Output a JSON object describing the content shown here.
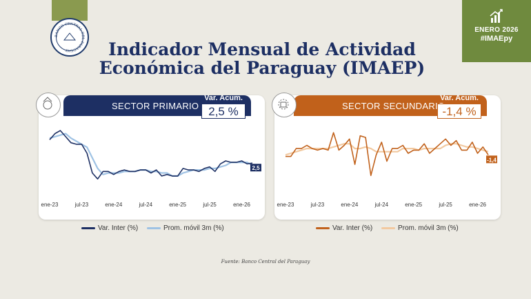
{
  "header": {
    "title_line1": "Indicador Mensual de Actividad",
    "title_line2": "Económica del Paraguay (IMAEP)",
    "badge_line1": "ENERO 2026",
    "badge_line2": "#IMAEpy",
    "seal_text": "BANCO CENTRAL DEL PARAGUAY"
  },
  "source": "Fuente: Banco Central del Paraguay",
  "colors": {
    "navy": "#1d2f63",
    "light_blue": "#9ec2e4",
    "orange": "#c1611b",
    "light_orange": "#f2c9a0",
    "green": "#6f8a3e"
  },
  "chart_data": [
    {
      "type": "line",
      "title": "SECTOR PRIMARIO",
      "acum_label": "Var. Acum.",
      "acum_value": "2,5 %",
      "end_label": "2,5",
      "x_tick_labels": [
        "ene-23",
        "jul-23",
        "ene-24",
        "jul-24",
        "ene-25",
        "jul-25",
        "ene-26"
      ],
      "ylim": [
        -12,
        30
      ],
      "series": [
        {
          "name": "Var. Inter (%)",
          "color": "#1d2f63",
          "values": [
            18,
            22,
            24,
            20,
            16,
            15,
            15,
            9,
            -4,
            -8,
            -3,
            -3,
            -5,
            -3,
            -2,
            -3,
            -3,
            -2,
            -2,
            -4,
            -2,
            -6,
            -5,
            -6,
            -6,
            -1,
            -2,
            -2,
            -3,
            -1,
            0,
            -3,
            2,
            4,
            3,
            3,
            4,
            2,
            2.5
          ]
        },
        {
          "name": "Prom. móvil 3m (%)",
          "color": "#9ec2e4",
          "values": [
            19,
            20,
            21,
            22,
            19,
            17,
            15,
            13,
            6,
            -1,
            -5,
            -4,
            -4,
            -4,
            -3,
            -3,
            -3,
            -2,
            -2,
            -3,
            -3,
            -4,
            -4,
            -6,
            -6,
            -4,
            -3,
            -2,
            -2,
            -2,
            -1,
            -1,
            0,
            1,
            3,
            3,
            3,
            3,
            1
          ]
        }
      ]
    },
    {
      "type": "line",
      "title": "SECTOR SECUNDARIO",
      "acum_label": "Var. Acum.",
      "acum_value": "-1,4 %",
      "end_label": "-1,4",
      "x_tick_labels": [
        "ene-23",
        "jul-23",
        "ene-24",
        "jul-24",
        "ene-25",
        "jul-25",
        "ene-26"
      ],
      "ylim": [
        -20,
        20
      ],
      "series": [
        {
          "name": "Var. Inter (%)",
          "color": "#c1611b",
          "values": [
            -2,
            -2,
            3,
            3,
            5,
            3,
            2,
            3,
            2,
            13,
            2,
            5,
            9,
            -7,
            11,
            10,
            -14,
            -1,
            7,
            -5,
            3,
            3,
            5,
            0,
            2,
            2,
            6,
            0,
            3,
            6,
            9,
            5,
            8,
            2,
            2,
            7,
            0,
            4,
            -1
          ]
        },
        {
          "name": "Prom. móvil 3m (%)",
          "color": "#f2c9a0",
          "values": [
            -1,
            0,
            1,
            2,
            3,
            3,
            3,
            3,
            3,
            4,
            5,
            6,
            6,
            3,
            3,
            4,
            3,
            1,
            1,
            1,
            1,
            1,
            3,
            3,
            3,
            2,
            3,
            3,
            3,
            3,
            5,
            6,
            6,
            5,
            4,
            4,
            3,
            2,
            1
          ]
        }
      ]
    }
  ]
}
